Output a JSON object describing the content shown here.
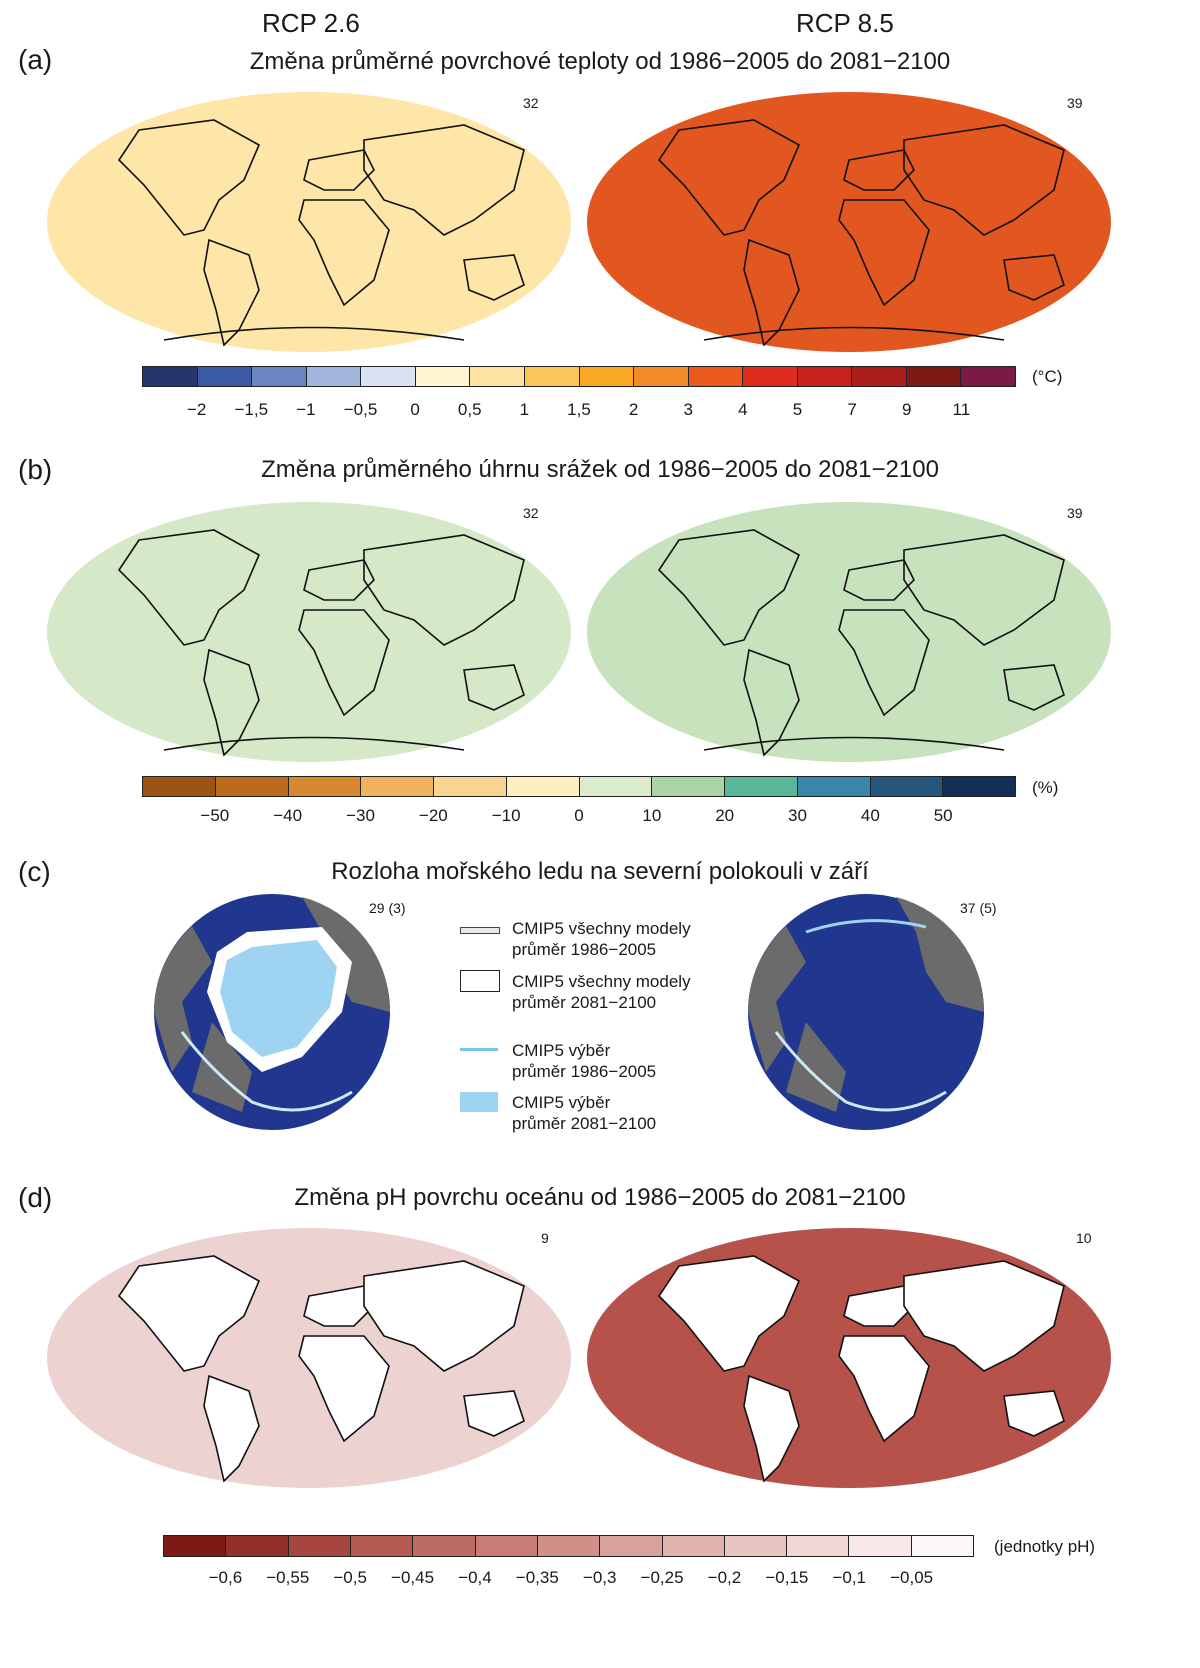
{
  "scenarios": {
    "left": "RCP 2.6",
    "right": "RCP 8.5"
  },
  "panel_a": {
    "label": "(a)",
    "title": "Změna průměrné povrchové teploty od 1986−2005 do 2081−2100",
    "left_number": "32",
    "right_number": "39",
    "unit": "(°C)",
    "colors": [
      "#26356e",
      "#3a5aa6",
      "#6b85c2",
      "#a3b6de",
      "#d9e3f4",
      "#fff5d1",
      "#fde3a1",
      "#fbc55a",
      "#f8a825",
      "#f38b28",
      "#ea5a1d",
      "#e02b1f",
      "#c6231f",
      "#a91d1b",
      "#7e1a14",
      "#7a1846"
    ],
    "ticks": [
      "−2",
      "−1,5",
      "−1",
      "−0,5",
      "0",
      "0,5",
      "1",
      "1,5",
      "2",
      "3",
      "4",
      "5",
      "7",
      "9",
      "11"
    ],
    "left_fill": "#fde6a8",
    "right_fill": "#e2571f"
  },
  "panel_b": {
    "label": "(b)",
    "title": "Změna průměrného úhrnu srážek od 1986−2005 do 2081−2100",
    "left_number": "32",
    "right_number": "39",
    "unit": "(%)",
    "colors": [
      "#9c5414",
      "#bd6a1c",
      "#d6892f",
      "#efb35f",
      "#f7d48f",
      "#fcefc0",
      "#dcebcd",
      "#a8d4a6",
      "#59b699",
      "#3a86a9",
      "#24567e",
      "#142f55"
    ],
    "ticks": [
      "−50",
      "−40",
      "−30",
      "−20",
      "−10",
      "0",
      "10",
      "20",
      "30",
      "40",
      "50"
    ],
    "left_fill": "#d5e8c8",
    "right_fill": "#c7e2bd"
  },
  "panel_c": {
    "label": "(c)",
    "title": "Rozloha mořského ledu na severní polokouli v září",
    "left_number": "29 (3)",
    "right_number": "37 (5)",
    "legend": [
      {
        "line1": "CMIP5 všechny modely",
        "line2": "průměr 1986−2005"
      },
      {
        "line1": "CMIP5 všechny modely",
        "line2": "průměr 2081−2100"
      },
      {
        "line1": "CMIP5 výběr",
        "line2": "průměr 1986−2005"
      },
      {
        "line1": "CMIP5 výběr",
        "line2": "průměr 2081−2100"
      }
    ],
    "ocean_color": "#20368f",
    "land_color": "#6b6b6b",
    "ice_color": "#9fd3f2"
  },
  "panel_d": {
    "label": "(d)",
    "title": "Změna pH povrchu oceánu od 1986−2005 do 2081−2100",
    "left_number": "9",
    "right_number": "10",
    "unit": "(jednotky pH)",
    "colors": [
      "#7e1913",
      "#93302a",
      "#a6463f",
      "#b35a52",
      "#bd6c63",
      "#c77d75",
      "#d08f88",
      "#d9a19b",
      "#e1b3ae",
      "#e9c5c1",
      "#f1d7d5",
      "#f8e8e7",
      "#fdf6f6"
    ],
    "ticks": [
      "−0,6",
      "−0,55",
      "−0,5",
      "−0,45",
      "−0,4",
      "−0,35",
      "−0,3",
      "−0,25",
      "−0,2",
      "−0,15",
      "−0,1",
      "−0,05"
    ],
    "left_fill": "#ecd3d1",
    "right_fill": "#b6524a"
  }
}
